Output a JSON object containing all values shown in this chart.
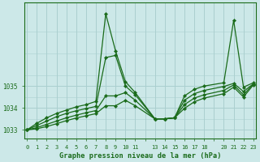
{
  "background_color": "#cce8e8",
  "grid_color": "#aacfcf",
  "line_color": "#1a6b1a",
  "title": "Graphe pression niveau de la mer (hPa)",
  "ylim": [
    1032.6,
    1038.8
  ],
  "yticks": [
    1033,
    1034,
    1035
  ],
  "xlim": [
    -0.3,
    23.3
  ],
  "series1_x": [
    0,
    1,
    2,
    3,
    4,
    5,
    6,
    7,
    8,
    9,
    10,
    11,
    13,
    14,
    15,
    16,
    17,
    18,
    20,
    21,
    22,
    23
  ],
  "series1_y": [
    1033.0,
    1033.3,
    1033.55,
    1033.75,
    1033.9,
    1034.05,
    1034.15,
    1034.3,
    1038.3,
    1036.6,
    1035.2,
    1034.7,
    1033.5,
    1033.5,
    1033.55,
    1034.55,
    1034.85,
    1035.0,
    1035.15,
    1038.0,
    1034.95,
    1035.15
  ],
  "series2_x": [
    0,
    1,
    2,
    3,
    4,
    5,
    6,
    7,
    8,
    9,
    10,
    11,
    13,
    14,
    15,
    16,
    17,
    18,
    20,
    21,
    22,
    23
  ],
  "series2_y": [
    1033.0,
    1033.2,
    1033.4,
    1033.6,
    1033.75,
    1033.87,
    1033.97,
    1034.07,
    1036.3,
    1036.4,
    1035.0,
    1034.6,
    1033.5,
    1033.5,
    1033.55,
    1034.35,
    1034.65,
    1034.8,
    1034.98,
    1035.12,
    1034.75,
    1035.1
  ],
  "series3_x": [
    0,
    1,
    2,
    3,
    4,
    5,
    6,
    7,
    8,
    9,
    10,
    11,
    13,
    14,
    15,
    16,
    17,
    18,
    20,
    21,
    22,
    23
  ],
  "series3_y": [
    1033.0,
    1033.1,
    1033.25,
    1033.4,
    1033.55,
    1033.67,
    1033.78,
    1033.88,
    1034.55,
    1034.55,
    1034.7,
    1034.35,
    1033.5,
    1033.5,
    1033.55,
    1034.15,
    1034.45,
    1034.6,
    1034.8,
    1035.05,
    1034.6,
    1035.1
  ],
  "series4_x": [
    0,
    1,
    2,
    3,
    4,
    5,
    6,
    7,
    8,
    9,
    10,
    11,
    13,
    14,
    15,
    16,
    17,
    18,
    20,
    21,
    22,
    23
  ],
  "series4_y": [
    1033.0,
    1033.05,
    1033.15,
    1033.28,
    1033.42,
    1033.54,
    1033.64,
    1033.74,
    1034.1,
    1034.1,
    1034.35,
    1034.1,
    1033.5,
    1033.5,
    1033.55,
    1033.98,
    1034.28,
    1034.45,
    1034.65,
    1034.95,
    1034.5,
    1035.05
  ]
}
